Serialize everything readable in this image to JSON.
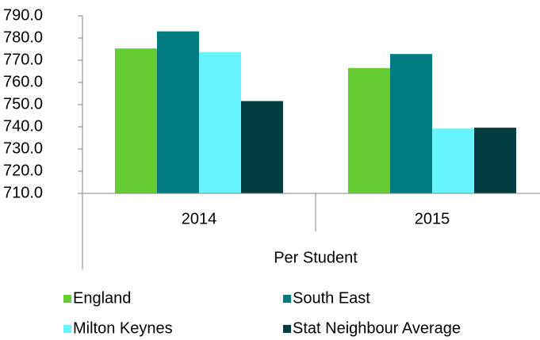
{
  "chart_data": {
    "type": "bar",
    "x_label": "Per Student",
    "categories": [
      "2014",
      "2015"
    ],
    "series": [
      {
        "name": "England",
        "color": "#66cc33",
        "values": [
          775.3,
          766.5
        ]
      },
      {
        "name": "South East",
        "color": "#007c80",
        "values": [
          783.0,
          772.8
        ]
      },
      {
        "name": "Milton Keynes",
        "color": "#66f5ff",
        "values": [
          773.7,
          739.2
        ]
      },
      {
        "name": "Stat Neighbour Average",
        "color": "#003c40",
        "values": [
          751.6,
          739.6
        ]
      }
    ],
    "ylim": [
      710,
      790
    ],
    "yticks": [
      {
        "value": 710,
        "label": "710.0"
      },
      {
        "value": 720,
        "label": "720.0"
      },
      {
        "value": 730,
        "label": "730.0"
      },
      {
        "value": 740,
        "label": "740.0"
      },
      {
        "value": 750,
        "label": "750.0"
      },
      {
        "value": 760,
        "label": "760.0"
      },
      {
        "value": 770,
        "label": "770.0"
      },
      {
        "value": 780,
        "label": "780.0"
      },
      {
        "value": 790,
        "label": "790.0"
      }
    ],
    "grid": false,
    "legend": "bottom"
  }
}
